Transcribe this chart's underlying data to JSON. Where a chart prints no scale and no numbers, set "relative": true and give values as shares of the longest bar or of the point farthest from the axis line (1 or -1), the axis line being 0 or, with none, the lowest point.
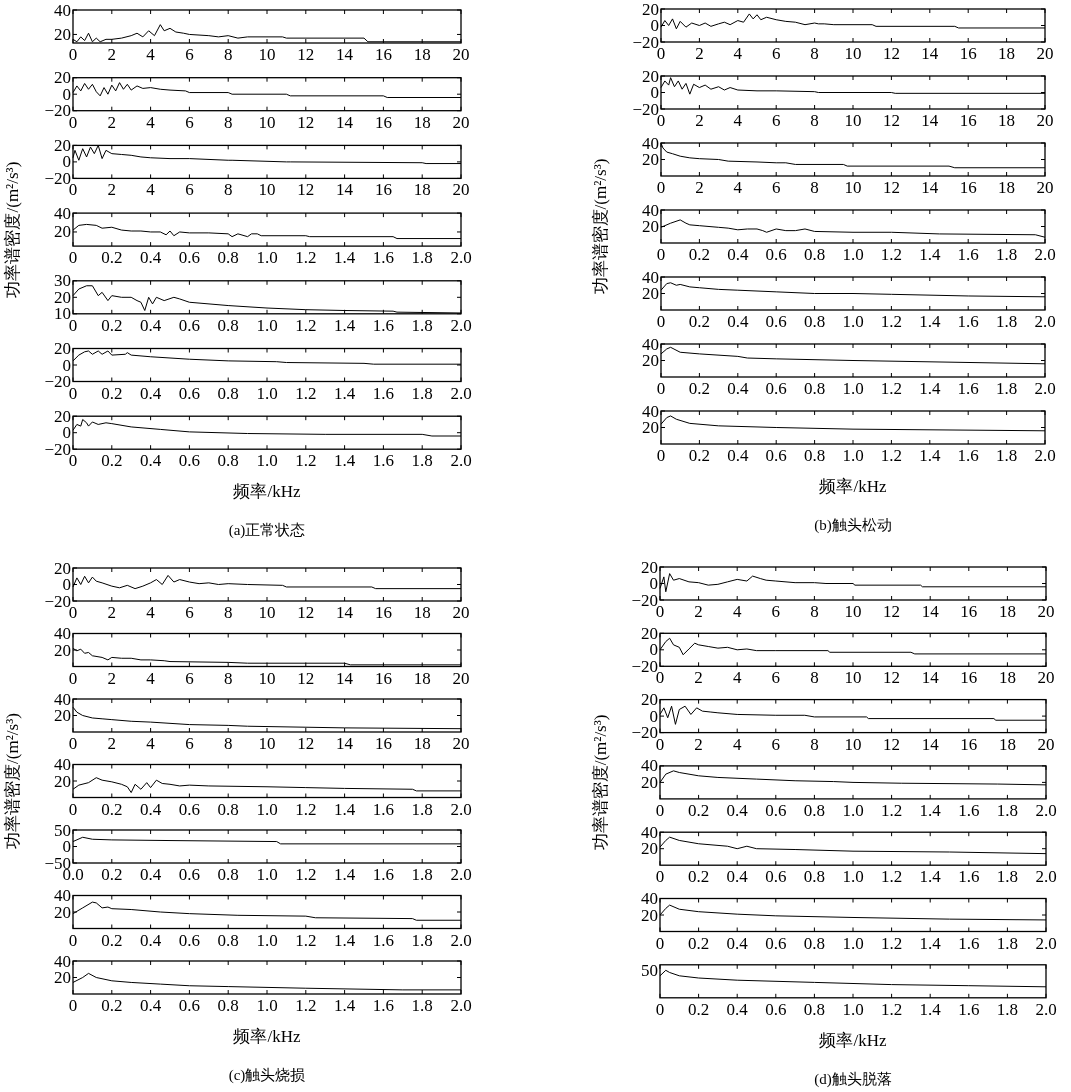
{
  "chart_data": [
    {
      "type": "line",
      "xlim": [
        0,
        20
      ],
      "xticks": [
        0,
        2,
        4,
        6,
        8,
        10,
        12,
        14,
        16,
        18,
        20
      ],
      "ylim": [
        13,
        40
      ],
      "yticks": [
        20,
        40
      ],
      "x": [
        0,
        0.2,
        0.4,
        0.6,
        0.8,
        1.0,
        1.2,
        1.4,
        1.7,
        2,
        2.5,
        3,
        3.3,
        3.6,
        3.9,
        4.2,
        4.5,
        4.7,
        5,
        5.3,
        5.7,
        6,
        7,
        7.5,
        8,
        8.5,
        9,
        10.8,
        11,
        15,
        15.2,
        20
      ],
      "values": [
        16,
        14,
        18,
        15,
        21,
        14,
        17,
        14,
        16,
        16,
        17,
        19,
        21,
        18,
        23,
        19,
        28,
        23,
        25,
        22,
        21,
        20,
        19,
        18,
        19,
        17,
        18,
        18,
        17,
        17,
        14,
        14
      ]
    },
    {
      "type": "line",
      "xlim": [
        0,
        20
      ],
      "xticks": [
        0,
        2,
        4,
        6,
        8,
        10,
        12,
        14,
        16,
        18,
        20
      ],
      "ylim": [
        -20,
        20
      ],
      "yticks": [
        -20,
        0,
        20
      ],
      "x": [
        0,
        0.2,
        0.4,
        0.6,
        0.8,
        1.0,
        1.2,
        1.4,
        1.6,
        1.8,
        2.0,
        2.2,
        2.4,
        2.6,
        2.8,
        3.0,
        3.3,
        3.6,
        4,
        4.5,
        5,
        5.8,
        6,
        8,
        8.2,
        11,
        11.2,
        16,
        16.2,
        20
      ],
      "values": [
        2,
        10,
        4,
        13,
        6,
        12,
        3,
        -2,
        8,
        0,
        11,
        4,
        14,
        6,
        12,
        5,
        10,
        7,
        8,
        6,
        5,
        4,
        2,
        2,
        0,
        0,
        -2,
        -2,
        -4,
        -4
      ]
    },
    {
      "type": "line",
      "xlim": [
        0,
        20
      ],
      "xticks": [
        0,
        2,
        4,
        6,
        8,
        10,
        12,
        14,
        16,
        18,
        20
      ],
      "ylim": [
        -20,
        20
      ],
      "yticks": [
        -20,
        0,
        20
      ],
      "x": [
        0,
        0.1,
        0.3,
        0.5,
        0.7,
        0.9,
        1.1,
        1.3,
        1.5,
        1.7,
        2,
        2.5,
        3,
        3.5,
        4,
        5,
        6,
        8,
        8.2,
        11,
        11.2,
        18,
        18.2,
        20
      ],
      "values": [
        5,
        14,
        2,
        16,
        6,
        18,
        10,
        20,
        4,
        14,
        10,
        9,
        8,
        6,
        5,
        4,
        4,
        2,
        2,
        0,
        0,
        -1,
        -2,
        -2
      ]
    },
    {
      "type": "line",
      "ylabel": "功率谱密度/(m²/s³)",
      "xlim": [
        0,
        2
      ],
      "xticks": [
        0,
        0.2,
        0.4,
        0.6,
        0.8,
        {
          "value": 1,
          "label": "1.0"
        },
        1.2,
        1.4,
        1.6,
        1.8,
        {
          "value": 2,
          "label": "2.0"
        }
      ],
      "ylim": [
        5,
        40
      ],
      "yticks": [
        20,
        40
      ],
      "x": [
        0,
        0.03,
        0.07,
        0.12,
        0.15,
        0.2,
        0.25,
        0.3,
        0.35,
        0.4,
        0.45,
        0.48,
        0.5,
        0.52,
        0.55,
        0.6,
        0.7,
        0.8,
        0.82,
        0.85,
        0.9,
        0.92,
        0.95,
        0.97,
        1.2,
        1.22,
        1.65,
        1.67,
        2.0
      ],
      "values": [
        22,
        27,
        28,
        27,
        24,
        25,
        22,
        21,
        21,
        20,
        20,
        17,
        21,
        16,
        20,
        19,
        19,
        18,
        15,
        18,
        15,
        18,
        18,
        16,
        16,
        15,
        15,
        13,
        13
      ]
    },
    {
      "type": "line",
      "xlim": [
        0,
        2
      ],
      "xticks": [
        0,
        0.2,
        0.4,
        0.6,
        0.8,
        {
          "value": 1,
          "label": "1.0"
        },
        1.2,
        1.4,
        1.6,
        1.8,
        {
          "value": 2,
          "label": "2.0"
        }
      ],
      "ylim": [
        10,
        30
      ],
      "yticks": [
        10,
        20,
        30
      ],
      "x": [
        0,
        0.03,
        0.07,
        0.1,
        0.13,
        0.15,
        0.18,
        0.2,
        0.25,
        0.3,
        0.33,
        0.35,
        0.37,
        0.39,
        0.41,
        0.43,
        0.47,
        0.52,
        0.55,
        0.6,
        0.8,
        1.0,
        1.2,
        1.4,
        1.65,
        1.67,
        2.0
      ],
      "values": [
        21,
        25,
        27,
        27,
        21,
        23,
        18,
        21,
        20,
        20,
        18,
        17,
        12,
        20,
        16,
        20,
        18,
        20,
        19,
        17,
        15,
        13.5,
        12.5,
        12,
        11.6,
        11,
        10.5
      ]
    },
    {
      "type": "line",
      "xlim": [
        0,
        2
      ],
      "xticks": [
        0,
        0.2,
        0.4,
        0.6,
        0.8,
        {
          "value": 1,
          "label": "1.0"
        },
        1.2,
        1.4,
        1.6,
        1.8,
        {
          "value": 2,
          "label": "2.0"
        }
      ],
      "ylim": [
        -20,
        20
      ],
      "yticks": [
        -20,
        0,
        20
      ],
      "x": [
        0,
        0.03,
        0.06,
        0.08,
        0.1,
        0.13,
        0.15,
        0.18,
        0.2,
        0.27,
        0.28,
        0.3,
        0.4,
        0.6,
        0.8,
        1.05,
        1.1,
        1.5,
        1.55,
        2.0
      ],
      "values": [
        5,
        12,
        16,
        17,
        13,
        17,
        13,
        17,
        12,
        13,
        15,
        12,
        10,
        7,
        5,
        4,
        3,
        2,
        1,
        1
      ]
    },
    {
      "type": "line",
      "xlabel": "频率/kHz",
      "annotations": [
        "(a)正常状态"
      ],
      "xlim": [
        0,
        2
      ],
      "xticks": [
        0,
        0.2,
        0.4,
        0.6,
        0.8,
        {
          "value": 1,
          "label": "1.0"
        },
        1.2,
        1.4,
        1.6,
        1.8,
        {
          "value": 2,
          "label": "2.0"
        }
      ],
      "ylim": [
        -20,
        20
      ],
      "yticks": [
        -20,
        0,
        20
      ],
      "x": [
        0,
        0.02,
        0.04,
        0.05,
        0.07,
        0.08,
        0.1,
        0.13,
        0.17,
        0.2,
        0.3,
        0.45,
        0.6,
        0.9,
        1.3,
        1.8,
        1.85,
        2.0
      ],
      "values": [
        3,
        10,
        8,
        16,
        12,
        8,
        13,
        10,
        12,
        11,
        7,
        4,
        1,
        -1,
        -2,
        -2,
        -4,
        -4
      ]
    },
    {
      "type": "line",
      "xlim": [
        0,
        20
      ],
      "xticks": [
        0,
        2,
        4,
        6,
        8,
        10,
        12,
        14,
        16,
        18,
        20
      ],
      "ylim": [
        -20,
        20
      ],
      "yticks": [
        -20,
        0,
        20
      ],
      "x": [
        0,
        0.2,
        0.4,
        0.6,
        0.8,
        1,
        1.3,
        1.6,
        2,
        2.3,
        2.6,
        3,
        3.3,
        3.6,
        4,
        4.3,
        4.6,
        4.8,
        5,
        5.2,
        5.5,
        6,
        6.5,
        7,
        7.5,
        8,
        8.2,
        8.5,
        9,
        11,
        11.2,
        15.3,
        15.5,
        20
      ],
      "values": [
        -2,
        6,
        0,
        8,
        -4,
        5,
        -2,
        3,
        0,
        3,
        -1,
        2,
        4,
        1,
        6,
        4,
        14,
        8,
        13,
        7,
        10,
        7,
        5,
        4,
        1,
        3,
        2,
        2,
        1,
        1,
        -1,
        -1,
        -3,
        -3
      ]
    },
    {
      "type": "line",
      "xlim": [
        0,
        20
      ],
      "xticks": [
        0,
        2,
        4,
        6,
        8,
        10,
        12,
        14,
        16,
        18,
        20
      ],
      "ylim": [
        -20,
        20
      ],
      "yticks": [
        -20,
        0,
        20
      ],
      "x": [
        0,
        0.2,
        0.4,
        0.5,
        0.7,
        0.9,
        1.1,
        1.3,
        1.5,
        1.7,
        2,
        2.3,
        2.6,
        3,
        3.3,
        3.6,
        4,
        5,
        6,
        8,
        8.2,
        12,
        12.2,
        20
      ],
      "values": [
        6,
        14,
        9,
        18,
        7,
        14,
        4,
        11,
        -2,
        10,
        6,
        9,
        4,
        7,
        3,
        6,
        3,
        2,
        2,
        1,
        0,
        0,
        -1,
        -1
      ]
    },
    {
      "type": "line",
      "xlim": [
        0,
        20
      ],
      "xticks": [
        0,
        2,
        4,
        6,
        8,
        10,
        12,
        14,
        16,
        18,
        20
      ],
      "ylim": [
        0,
        40
      ],
      "yticks": [
        20,
        40
      ],
      "x": [
        0,
        0.1,
        0.3,
        0.6,
        1,
        1.5,
        2,
        3,
        3.5,
        5,
        6,
        6.5,
        7,
        9.5,
        9.7,
        15,
        15.3,
        20
      ],
      "values": [
        40,
        34,
        29,
        27,
        24,
        22,
        21,
        20,
        18,
        17,
        16,
        16,
        14,
        14,
        12,
        12,
        10,
        10
      ]
    },
    {
      "type": "line",
      "ylabel": "功率谱密度/(m²/s³)",
      "xlim": [
        0,
        2
      ],
      "xticks": [
        0,
        0.2,
        0.4,
        0.6,
        0.8,
        {
          "value": 1,
          "label": "1.0"
        },
        1.2,
        1.4,
        1.6,
        1.8,
        {
          "value": 2,
          "label": "2.0"
        }
      ],
      "ylim": [
        0,
        40
      ],
      "yticks": [
        20,
        40
      ],
      "x": [
        0,
        0.05,
        0.1,
        0.13,
        0.15,
        0.2,
        0.25,
        0.3,
        0.35,
        0.4,
        0.45,
        0.5,
        0.53,
        0.55,
        0.6,
        0.65,
        0.7,
        0.75,
        0.8,
        1.0,
        1.2,
        1.45,
        1.95,
        2.0
      ],
      "values": [
        19,
        24,
        28,
        24,
        22,
        21,
        20,
        19,
        18,
        16,
        17,
        17,
        15,
        13,
        17,
        15,
        15,
        17,
        14,
        13,
        13,
        11,
        10,
        7
      ]
    },
    {
      "type": "line",
      "xlim": [
        0,
        2
      ],
      "xticks": [
        0,
        0.2,
        0.4,
        0.6,
        0.8,
        {
          "value": 1,
          "label": "1.0"
        },
        1.2,
        1.4,
        1.6,
        1.8,
        {
          "value": 2,
          "label": "2.0"
        }
      ],
      "ylim": [
        0,
        40
      ],
      "yticks": [
        20,
        40
      ],
      "x": [
        0,
        0.03,
        0.05,
        0.08,
        0.1,
        0.15,
        0.2,
        0.3,
        0.4,
        0.6,
        0.8,
        1.0,
        1.2,
        1.6,
        2.0
      ],
      "values": [
        24,
        32,
        33,
        30,
        31,
        28,
        27,
        25,
        24,
        22,
        20,
        20,
        19,
        17,
        16
      ]
    },
    {
      "type": "line",
      "xlim": [
        0,
        2
      ],
      "xticks": [
        0,
        0.2,
        0.4,
        0.6,
        0.8,
        {
          "value": 1,
          "label": "1.0"
        },
        1.2,
        1.4,
        1.6,
        1.8,
        {
          "value": 2,
          "label": "2.0"
        }
      ],
      "ylim": [
        0,
        40
      ],
      "yticks": [
        20,
        40
      ],
      "x": [
        0,
        0.03,
        0.05,
        0.1,
        0.2,
        0.4,
        0.45,
        0.6,
        1.0,
        1.5,
        2.0
      ],
      "values": [
        28,
        34,
        36,
        30,
        28,
        25,
        23,
        22,
        20,
        18,
        16
      ]
    },
    {
      "type": "line",
      "xlabel": "频率/kHz",
      "annotations": [
        "(b)触头松动"
      ],
      "xlim": [
        0,
        2
      ],
      "xticks": [
        0,
        0.2,
        0.4,
        0.6,
        0.8,
        {
          "value": 1,
          "label": "1.0"
        },
        1.2,
        1.4,
        1.6,
        1.8,
        {
          "value": 2,
          "label": "2.0"
        }
      ],
      "ylim": [
        0,
        40
      ],
      "yticks": [
        20,
        40
      ],
      "x": [
        0,
        0.03,
        0.05,
        0.08,
        0.15,
        0.3,
        0.6,
        1.0,
        1.5,
        2.0
      ],
      "values": [
        24,
        32,
        34,
        30,
        25,
        22,
        20,
        18,
        17,
        16
      ]
    },
    {
      "type": "line",
      "xlim": [
        0,
        20
      ],
      "xticks": [
        0,
        2,
        4,
        6,
        8,
        10,
        12,
        14,
        16,
        18,
        20
      ],
      "ylim": [
        -20,
        20
      ],
      "yticks": [
        -20,
        0,
        20
      ],
      "x": [
        0,
        0.2,
        0.4,
        0.6,
        0.8,
        1,
        1.2,
        1.5,
        2,
        2.4,
        2.8,
        3.2,
        3.6,
        4,
        4.3,
        4.6,
        4.9,
        5.2,
        5.5,
        6,
        6.5,
        7,
        7.5,
        8,
        9,
        10.8,
        11,
        15.4,
        15.6,
        20
      ],
      "values": [
        -3,
        8,
        0,
        10,
        2,
        9,
        4,
        2,
        -2,
        -4,
        -1,
        -5,
        -2,
        2,
        6,
        0,
        11,
        3,
        6,
        3,
        1,
        2,
        0,
        1,
        0,
        -1,
        -3,
        -3,
        -5,
        -5
      ]
    },
    {
      "type": "line",
      "xlim": [
        0,
        20
      ],
      "xticks": [
        0,
        2,
        4,
        6,
        8,
        10,
        12,
        14,
        16,
        18,
        20
      ],
      "ylim": [
        0,
        40
      ],
      "yticks": [
        20,
        40
      ],
      "x": [
        0,
        0.2,
        0.4,
        0.6,
        0.8,
        1,
        1.5,
        1.8,
        2,
        2.5,
        3,
        3.5,
        4,
        4.7,
        5,
        8,
        9,
        14,
        14.3,
        20
      ],
      "values": [
        22,
        19,
        21,
        16,
        17,
        13,
        11,
        8,
        11,
        10,
        10,
        8,
        8,
        7,
        6,
        5,
        4,
        4,
        2,
        2
      ]
    },
    {
      "type": "line",
      "xlim": [
        0,
        20
      ],
      "xticks": [
        0,
        2,
        4,
        6,
        8,
        10,
        12,
        14,
        16,
        18,
        20
      ],
      "ylim": [
        0,
        40
      ],
      "yticks": [
        20,
        40
      ],
      "x": [
        0,
        0.2,
        0.5,
        1,
        1.5,
        2,
        3,
        4,
        6,
        8,
        9,
        14,
        20
      ],
      "values": [
        30,
        24,
        20,
        17,
        16,
        15,
        13,
        12,
        9,
        8,
        7,
        5,
        4
      ]
    },
    {
      "type": "line",
      "ylabel": "功率谱密度/(m²/s³)",
      "xlim": [
        0,
        2
      ],
      "xticks": [
        0,
        0.2,
        0.4,
        0.6,
        0.8,
        {
          "value": 1,
          "label": "1.0"
        },
        1.2,
        1.4,
        1.6,
        1.8,
        {
          "value": 2,
          "label": "2.0"
        }
      ],
      "ylim": [
        0,
        40
      ],
      "yticks": [
        20,
        40
      ],
      "x": [
        0,
        0.03,
        0.08,
        0.12,
        0.15,
        0.2,
        0.25,
        0.28,
        0.3,
        0.32,
        0.35,
        0.38,
        0.4,
        0.43,
        0.46,
        0.5,
        0.55,
        0.6,
        0.7,
        1.0,
        1.2,
        1.4,
        1.75,
        1.77,
        2.0
      ],
      "values": [
        10,
        15,
        18,
        24,
        21,
        19,
        16,
        13,
        6,
        16,
        10,
        18,
        12,
        21,
        17,
        16,
        14,
        15,
        14,
        13,
        12,
        11,
        10,
        8,
        8
      ]
    },
    {
      "type": "line",
      "xlim": [
        0,
        2
      ],
      "xticks": [
        {
          "value": 0,
          "label": "0.0"
        },
        0.2,
        0.4,
        0.6,
        0.8,
        {
          "value": 1,
          "label": "1.0"
        },
        1.2,
        1.4,
        1.6,
        1.8,
        {
          "value": 2,
          "label": "2.0"
        }
      ],
      "ylim": [
        -50,
        50
      ],
      "yticks": [
        -50,
        0,
        50
      ],
      "x": [
        0,
        0.05,
        0.1,
        0.2,
        0.5,
        1.05,
        1.07,
        2.0
      ],
      "values": [
        15,
        28,
        22,
        20,
        18,
        15,
        8,
        8
      ]
    },
    {
      "type": "line",
      "xlim": [
        0,
        2
      ],
      "xticks": [
        0,
        0.2,
        0.4,
        0.6,
        0.8,
        {
          "value": 1,
          "label": "1.0"
        },
        1.2,
        1.4,
        1.6,
        1.8,
        {
          "value": 2,
          "label": "2.0"
        }
      ],
      "ylim": [
        0,
        40
      ],
      "yticks": [
        20,
        40
      ],
      "x": [
        0,
        0.05,
        0.1,
        0.12,
        0.15,
        0.18,
        0.2,
        0.3,
        0.45,
        0.6,
        0.85,
        1.2,
        1.25,
        1.75,
        1.77,
        2.0
      ],
      "values": [
        18,
        25,
        32,
        31,
        25,
        26,
        24,
        23,
        20,
        18,
        16,
        15,
        13,
        12,
        10,
        10
      ]
    },
    {
      "type": "line",
      "xlabel": "频率/kHz",
      "annotations": [
        "(c)触头烧损"
      ],
      "xlim": [
        0,
        2
      ],
      "xticks": [
        0,
        0.2,
        0.4,
        0.6,
        0.8,
        {
          "value": 1,
          "label": "1.0"
        },
        1.2,
        1.4,
        1.6,
        1.8,
        {
          "value": 2,
          "label": "2.0"
        }
      ],
      "ylim": [
        0,
        40
      ],
      "yticks": [
        20,
        40
      ],
      "x": [
        0,
        0.05,
        0.08,
        0.12,
        0.2,
        0.3,
        0.45,
        0.6,
        0.8,
        1.2,
        1.7,
        2.0
      ],
      "values": [
        14,
        20,
        25,
        20,
        16,
        14,
        12,
        10,
        9,
        7,
        5,
        5
      ]
    },
    {
      "type": "line",
      "xlim": [
        0,
        20
      ],
      "xticks": [
        0,
        2,
        4,
        6,
        8,
        10,
        12,
        14,
        16,
        18,
        20
      ],
      "ylim": [
        -20,
        20
      ],
      "yticks": [
        -20,
        0,
        20
      ],
      "x": [
        0,
        0.2,
        0.3,
        0.5,
        0.7,
        1,
        1.5,
        2,
        2.5,
        3,
        3.5,
        4,
        4.5,
        4.8,
        5.2,
        5.5,
        6,
        7,
        8,
        8.6,
        10,
        10.1,
        13.5,
        13.6,
        20
      ],
      "values": [
        -6,
        8,
        -10,
        12,
        4,
        6,
        2,
        1,
        -2,
        -1,
        2,
        5,
        3,
        9,
        6,
        4,
        3,
        1,
        1,
        0,
        0,
        -2,
        -2,
        -4,
        -4
      ]
    },
    {
      "type": "line",
      "xlim": [
        0,
        20
      ],
      "xticks": [
        0,
        2,
        4,
        6,
        8,
        10,
        12,
        14,
        16,
        18,
        20
      ],
      "ylim": [
        -20,
        20
      ],
      "yticks": [
        -20,
        0,
        20
      ],
      "x": [
        0,
        0.3,
        0.5,
        0.7,
        1,
        1.2,
        1.5,
        1.8,
        2,
        2.5,
        3,
        3.5,
        4,
        4.5,
        5,
        6,
        8.7,
        8.8,
        13,
        13.2,
        20
      ],
      "values": [
        0,
        10,
        14,
        6,
        3,
        -6,
        1,
        8,
        6,
        4,
        2,
        3,
        0,
        1,
        -1,
        -1,
        -1,
        -3,
        -3,
        -5,
        -5
      ]
    },
    {
      "type": "line",
      "xlim": [
        0,
        20
      ],
      "xticks": [
        0,
        2,
        4,
        6,
        8,
        10,
        12,
        14,
        16,
        18,
        20
      ],
      "ylim": [
        -20,
        20
      ],
      "yticks": [
        -20,
        0,
        20
      ],
      "x": [
        0,
        0.2,
        0.4,
        0.6,
        0.8,
        1,
        1.3,
        1.6,
        1.9,
        2.2,
        2.6,
        3,
        4,
        6,
        7.5,
        8,
        10.7,
        10.8,
        17.3,
        17.4,
        20
      ],
      "values": [
        2,
        10,
        -2,
        12,
        -10,
        8,
        12,
        2,
        10,
        6,
        5,
        4,
        2,
        1,
        1,
        -1,
        -1,
        -3,
        -3,
        -5,
        -5
      ]
    },
    {
      "type": "line",
      "ylabel": "功率谱密度/(m²/s³)",
      "xlim": [
        0,
        2
      ],
      "xticks": [
        0,
        0.2,
        0.4,
        0.6,
        0.8,
        {
          "value": 1,
          "label": "1.0"
        },
        1.2,
        1.4,
        1.6,
        1.8,
        {
          "value": 2,
          "label": "2.0"
        }
      ],
      "ylim": [
        0,
        40
      ],
      "yticks": [
        20,
        40
      ],
      "x": [
        0,
        0.03,
        0.07,
        0.1,
        0.2,
        0.3,
        0.5,
        0.7,
        0.9,
        1.0,
        1.25,
        1.75,
        2.0
      ],
      "values": [
        20,
        30,
        34,
        32,
        28,
        26,
        24,
        22,
        21,
        20,
        19,
        18,
        17
      ]
    },
    {
      "type": "line",
      "xlim": [
        0,
        2
      ],
      "xticks": [
        0,
        0.2,
        0.4,
        0.6,
        0.8,
        {
          "value": 1,
          "label": "1.0"
        },
        1.2,
        1.4,
        1.6,
        1.8,
        {
          "value": 2,
          "label": "2.0"
        }
      ],
      "ylim": [
        0,
        40
      ],
      "yticks": [
        20,
        40
      ],
      "x": [
        0,
        0.03,
        0.05,
        0.1,
        0.2,
        0.35,
        0.4,
        0.45,
        0.5,
        0.7,
        1.0,
        1.5,
        2.0
      ],
      "values": [
        22,
        30,
        34,
        30,
        26,
        23,
        20,
        23,
        20,
        19,
        17,
        16,
        14
      ]
    },
    {
      "type": "line",
      "xlim": [
        0,
        2
      ],
      "xticks": [
        0,
        0.2,
        0.4,
        0.6,
        0.8,
        {
          "value": 1,
          "label": "1.0"
        },
        1.2,
        1.4,
        1.6,
        1.8,
        {
          "value": 2,
          "label": "2.0"
        }
      ],
      "ylim": [
        0,
        40
      ],
      "yticks": [
        20,
        40
      ],
      "x": [
        0,
        0.03,
        0.05,
        0.1,
        0.2,
        0.4,
        0.6,
        1.0,
        1.5,
        2.0
      ],
      "values": [
        20,
        28,
        32,
        27,
        24,
        21,
        19,
        17,
        15,
        14
      ]
    },
    {
      "type": "line",
      "relative": true,
      "xlabel": "频率/kHz",
      "annotations": [
        {
          "text": "50",
          "x": 0,
          "y": 1
        },
        "(d)触头脱落"
      ],
      "xlim": [
        0,
        2
      ],
      "xticks": [
        0,
        0.2,
        0.4,
        0.6,
        0.8,
        {
          "value": 1,
          "label": "1.0"
        },
        1.2,
        1.4,
        1.6,
        1.8,
        {
          "value": 2,
          "label": "2.0"
        }
      ],
      "x": [
        0,
        0.03,
        0.05,
        0.1,
        0.2,
        0.4,
        0.8,
        1.2,
        1.6,
        2.0
      ],
      "values": [
        0.8,
        1,
        0.92,
        0.8,
        0.72,
        0.64,
        0.56,
        0.48,
        0.44,
        0.4
      ]
    }
  ]
}
